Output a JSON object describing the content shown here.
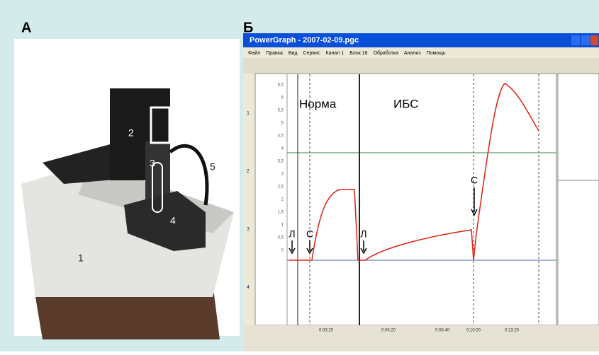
{
  "panel_labels": [
    "А",
    "Б"
  ],
  "photo": {
    "callouts": [
      "1",
      "2",
      "3",
      "4",
      "5"
    ]
  },
  "window": {
    "title": "PowerGraph - 2007-02-09.pgc",
    "menu": [
      "Файл",
      "Правка",
      "Вид",
      "Сервис",
      "Канал 1",
      "Блок 16",
      "Обработка",
      "Анализ",
      "Помощь"
    ],
    "plot": {
      "annotations": [
        "Норма",
        "ИБС"
      ],
      "markers": [
        "Л",
        "С",
        "Л",
        "С"
      ],
      "yticks": [
        "6,5",
        "6",
        "5,5",
        "5",
        "4,5",
        "4",
        "3,5",
        "3",
        "2,5",
        "2",
        "1,5",
        "1",
        "0,5",
        "0"
      ],
      "channels": [
        "1",
        "2",
        "3",
        "4"
      ],
      "xticks": [
        "0:03:20",
        "0:06:20",
        "0:08:40",
        "0:10:00",
        "0:13:20"
      ]
    }
  }
}
